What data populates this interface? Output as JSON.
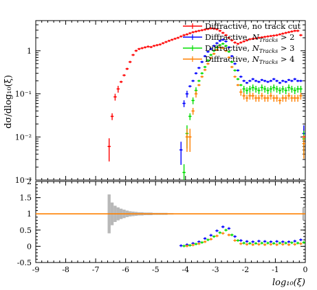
{
  "chart_data": [
    {
      "type": "scatter",
      "panel": "main",
      "y_scale": "log",
      "ylabel": "dσ/dlog₁₀(ξ)",
      "xlim": [
        -9,
        0
      ],
      "ylim": [
        0.001,
        5
      ],
      "y_tick_labels": [
        "1",
        "10⁻¹",
        "10⁻²",
        "10⁻³"
      ],
      "legend_position": "top-right",
      "series": [
        {
          "name": "Diffractive, no track cut",
          "color": "#ff0000",
          "x": [
            -6.55,
            -6.45,
            -6.35,
            -6.25,
            -6.15,
            -6.05,
            -5.95,
            -5.85,
            -5.75,
            -5.65,
            -5.55,
            -5.45,
            -5.35,
            -5.25,
            -5.15,
            -5.05,
            -4.95,
            -4.85,
            -4.75,
            -4.65,
            -4.55,
            -4.45,
            -4.35,
            -4.25,
            -4.15,
            -4.05,
            -3.95,
            -3.85,
            -3.75,
            -3.65,
            -3.55,
            -3.45,
            -3.35,
            -3.25,
            -3.15,
            -3.05,
            -2.95,
            -2.85,
            -2.75,
            -2.65,
            -2.55,
            -2.45,
            -2.35,
            -2.25,
            -2.15,
            -2.05,
            -1.95,
            -1.85,
            -1.75,
            -1.65,
            -1.55,
            -1.45,
            -1.35,
            -1.25,
            -1.15,
            -1.05,
            -0.95,
            -0.85,
            -0.75,
            -0.65,
            -0.55,
            -0.45,
            -0.35,
            -0.25,
            -0.15,
            -0.05
          ],
          "y": [
            0.006,
            0.03,
            0.085,
            0.13,
            0.19,
            0.27,
            0.38,
            0.55,
            0.8,
            1.0,
            1.1,
            1.15,
            1.2,
            1.25,
            1.22,
            1.3,
            1.35,
            1.4,
            1.5,
            1.6,
            1.7,
            1.8,
            1.9,
            2.0,
            2.15,
            2.3,
            2.4,
            2.55,
            2.7,
            2.8,
            2.9,
            3.0,
            3.1,
            3.2,
            3.3,
            3.25,
            3.15,
            2.9,
            2.6,
            2.3,
            2.0,
            1.75,
            1.55,
            1.45,
            1.55,
            1.65,
            1.75,
            1.85,
            1.9,
            1.95,
            2.0,
            2.05,
            2.1,
            2.15,
            2.2,
            2.25,
            2.3,
            2.4,
            2.5,
            2.6,
            2.7,
            2.8,
            2.9,
            2.9,
            2.3,
            0.01
          ]
        },
        {
          "name": "Diffractive, N_Tracks > 2",
          "color": "#0000ff",
          "x": [
            -4.15,
            -4.05,
            -3.95,
            -3.85,
            -3.75,
            -3.65,
            -3.55,
            -3.45,
            -3.35,
            -3.25,
            -3.15,
            -3.05,
            -2.95,
            -2.85,
            -2.75,
            -2.65,
            -2.55,
            -2.45,
            -2.35,
            -2.25,
            -2.15,
            -2.05,
            -1.95,
            -1.85,
            -1.75,
            -1.65,
            -1.55,
            -1.45,
            -1.35,
            -1.25,
            -1.15,
            -1.05,
            -0.95,
            -0.85,
            -0.75,
            -0.65,
            -0.55,
            -0.45,
            -0.35,
            -0.25,
            -0.15,
            -0.05
          ],
          "y": [
            0.005,
            0.06,
            0.1,
            0.15,
            0.2,
            0.3,
            0.4,
            0.55,
            0.75,
            0.95,
            1.1,
            1.3,
            1.5,
            1.7,
            1.8,
            1.65,
            1.2,
            0.75,
            0.5,
            0.35,
            0.25,
            0.2,
            0.18,
            0.2,
            0.22,
            0.2,
            0.19,
            0.21,
            0.2,
            0.19,
            0.2,
            0.22,
            0.2,
            0.18,
            0.2,
            0.19,
            0.21,
            0.2,
            0.22,
            0.2,
            0.2,
            0.012
          ]
        },
        {
          "name": "Diffractive, N_Tracks > 3",
          "color": "#00dd00",
          "x": [
            -4.05,
            -3.95,
            -3.85,
            -3.75,
            -3.65,
            -3.55,
            -3.45,
            -3.35,
            -3.25,
            -3.15,
            -3.05,
            -2.95,
            -2.85,
            -2.75,
            -2.65,
            -2.55,
            -2.45,
            -2.35,
            -2.25,
            -2.15,
            -2.05,
            -1.95,
            -1.85,
            -1.75,
            -1.65,
            -1.55,
            -1.45,
            -1.35,
            -1.25,
            -1.15,
            -1.05,
            -0.95,
            -0.85,
            -0.75,
            -0.65,
            -0.55,
            -0.45,
            -0.35,
            -0.25,
            -0.15,
            -0.05
          ],
          "y": [
            0.0015,
            0.012,
            0.03,
            0.07,
            0.12,
            0.2,
            0.3,
            0.42,
            0.6,
            0.8,
            1.0,
            1.2,
            1.35,
            1.45,
            1.3,
            0.95,
            0.55,
            0.35,
            0.22,
            0.16,
            0.13,
            0.12,
            0.13,
            0.14,
            0.13,
            0.12,
            0.14,
            0.13,
            0.12,
            0.13,
            0.14,
            0.13,
            0.12,
            0.13,
            0.12,
            0.14,
            0.13,
            0.12,
            0.13,
            0.13,
            0.009
          ]
        },
        {
          "name": "Diffractive, N_Tracks > 4",
          "color": "#ff8000",
          "x": [
            -3.95,
            -3.85,
            -3.75,
            -3.65,
            -3.55,
            -3.45,
            -3.35,
            -3.25,
            -3.15,
            -3.05,
            -2.95,
            -2.85,
            -2.75,
            -2.65,
            -2.55,
            -2.45,
            -2.35,
            -2.25,
            -2.15,
            -2.05,
            -1.95,
            -1.85,
            -1.75,
            -1.65,
            -1.55,
            -1.45,
            -1.35,
            -1.25,
            -1.15,
            -1.05,
            -0.95,
            -0.85,
            -0.75,
            -0.65,
            -0.55,
            -0.45,
            -0.35,
            -0.25,
            -0.15,
            -0.05
          ],
          "y": [
            0.01,
            0.01,
            0.04,
            0.1,
            0.16,
            0.25,
            0.36,
            0.5,
            0.68,
            0.85,
            1.05,
            1.2,
            1.15,
            1.0,
            0.7,
            0.42,
            0.25,
            0.16,
            0.11,
            0.09,
            0.08,
            0.09,
            0.09,
            0.08,
            0.08,
            0.09,
            0.08,
            0.08,
            0.09,
            0.08,
            0.08,
            0.07,
            0.08,
            0.08,
            0.09,
            0.08,
            0.08,
            0.08,
            0.09,
            0.007
          ]
        }
      ]
    },
    {
      "type": "scatter",
      "panel": "ratio",
      "xlabel": "log₁₀(ξ)",
      "xlim": [
        -9,
        0
      ],
      "ylim": [
        -0.5,
        2
      ],
      "x_tick_labels": [
        "-9",
        "-8",
        "-7",
        "-6",
        "-5",
        "-4",
        "-3",
        "-2",
        "-1",
        "0"
      ],
      "y_tick_labels": [
        "-0.5",
        "0",
        "0.5",
        "1",
        "1.5",
        "2"
      ],
      "reference_line": {
        "y": 1,
        "color": "#ff8000",
        "note": "MC stat. uncertainty band (grey)"
      },
      "uncertainty_band": {
        "x": [
          -6.55,
          -6.45,
          -6.35,
          -6.25,
          -6.15,
          -6.05,
          -5.95,
          -5.85,
          -5.75,
          -5.65,
          -5.55,
          -5.45,
          -5.35,
          -5.25,
          -5.15,
          -5.05,
          -4.95,
          -4.85,
          -4.75,
          -4.65,
          -4.55,
          -4.45,
          -0.05
        ],
        "halfwidth": [
          0.6,
          0.35,
          0.25,
          0.2,
          0.16,
          0.13,
          0.1,
          0.08,
          0.07,
          0.06,
          0.05,
          0.05,
          0.04,
          0.04,
          0.04,
          0.03,
          0.03,
          0.03,
          0.03,
          0.03,
          0.02,
          0.02,
          0.2
        ]
      },
      "series": [
        {
          "color": "#0000ff",
          "x": [
            -4.15,
            -3.95,
            -3.75,
            -3.55,
            -3.35,
            -3.15,
            -2.95,
            -2.75,
            -2.55,
            -2.35,
            -2.15,
            -1.95,
            -1.75,
            -1.55,
            -1.35,
            -1.15,
            -0.95,
            -0.75,
            -0.55,
            -0.35,
            -0.15
          ],
          "y": [
            0.02,
            0.05,
            0.09,
            0.14,
            0.24,
            0.34,
            0.48,
            0.6,
            0.55,
            0.3,
            0.18,
            0.15,
            0.14,
            0.16,
            0.15,
            0.14,
            0.15,
            0.14,
            0.14,
            0.16,
            0.2
          ]
        },
        {
          "color": "#00dd00",
          "x": [
            -4.05,
            -3.85,
            -3.65,
            -3.45,
            -3.25,
            -3.05,
            -2.85,
            -2.65,
            -2.45,
            -2.25,
            -2.05,
            -1.85,
            -1.65,
            -1.45,
            -1.25,
            -1.05,
            -0.85,
            -0.65,
            -0.45,
            -0.25,
            -0.05
          ],
          "y": [
            0.01,
            0.03,
            0.07,
            0.12,
            0.2,
            0.3,
            0.42,
            0.5,
            0.35,
            0.18,
            0.1,
            0.09,
            0.09,
            0.1,
            0.1,
            0.09,
            0.1,
            0.1,
            0.11,
            0.1,
            0.12
          ]
        },
        {
          "color": "#ff8000",
          "x": [
            -3.95,
            -3.75,
            -3.55,
            -3.35,
            -3.15,
            -2.95,
            -2.75,
            -2.55,
            -2.35,
            -2.15,
            -1.95,
            -1.75,
            -1.55,
            -1.35,
            -1.15,
            -0.95,
            -0.75,
            -0.55,
            -0.35,
            -0.15
          ],
          "y": [
            0.01,
            0.04,
            0.08,
            0.14,
            0.22,
            0.32,
            0.4,
            0.35,
            0.18,
            0.08,
            0.06,
            0.05,
            0.06,
            0.05,
            0.06,
            0.05,
            0.06,
            0.05,
            0.06,
            0.08
          ]
        }
      ]
    }
  ]
}
